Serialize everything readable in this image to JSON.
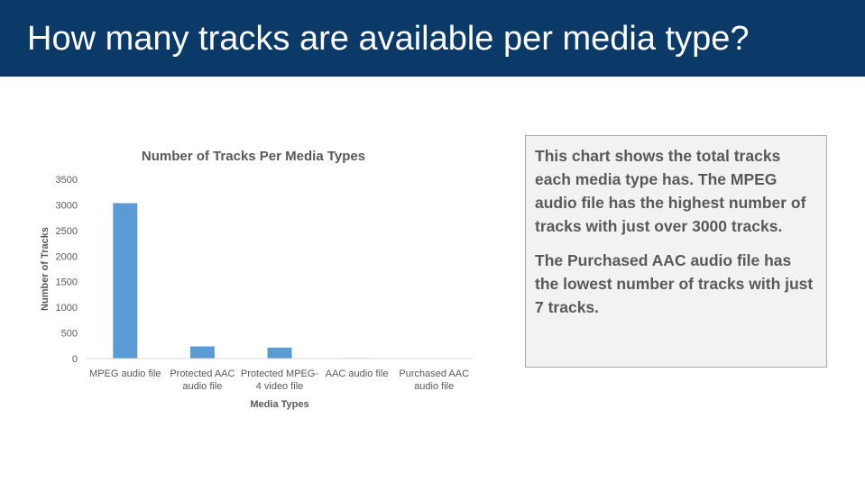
{
  "header": {
    "title": "How many tracks are available per media type?"
  },
  "note": {
    "paragraphs": [
      "This chart shows the total tracks each media type has. The MPEG audio file has the highest number of tracks with just over 3000 tracks.",
      "The Purchased AAC audio file has the lowest number of tracks with just 7 tracks."
    ]
  },
  "chart_data": {
    "type": "bar",
    "title": "Number of Tracks Per Media Types",
    "xlabel": "Media Types",
    "ylabel": "Number of Tracks",
    "categories": [
      [
        "MPEG audio file"
      ],
      [
        "Protected AAC",
        "audio file"
      ],
      [
        "Protected MPEG-",
        "4 video file"
      ],
      [
        "AAC audio file"
      ],
      [
        "Purchased AAC",
        "audio file"
      ]
    ],
    "values": [
      3034,
      237,
      214,
      11,
      7
    ],
    "ylim": [
      0,
      3500
    ],
    "yticks": [
      0,
      500,
      1000,
      1500,
      2000,
      2500,
      3000,
      3500
    ],
    "bar_color": "#5b9bd5",
    "grid": false,
    "legend": "none"
  }
}
